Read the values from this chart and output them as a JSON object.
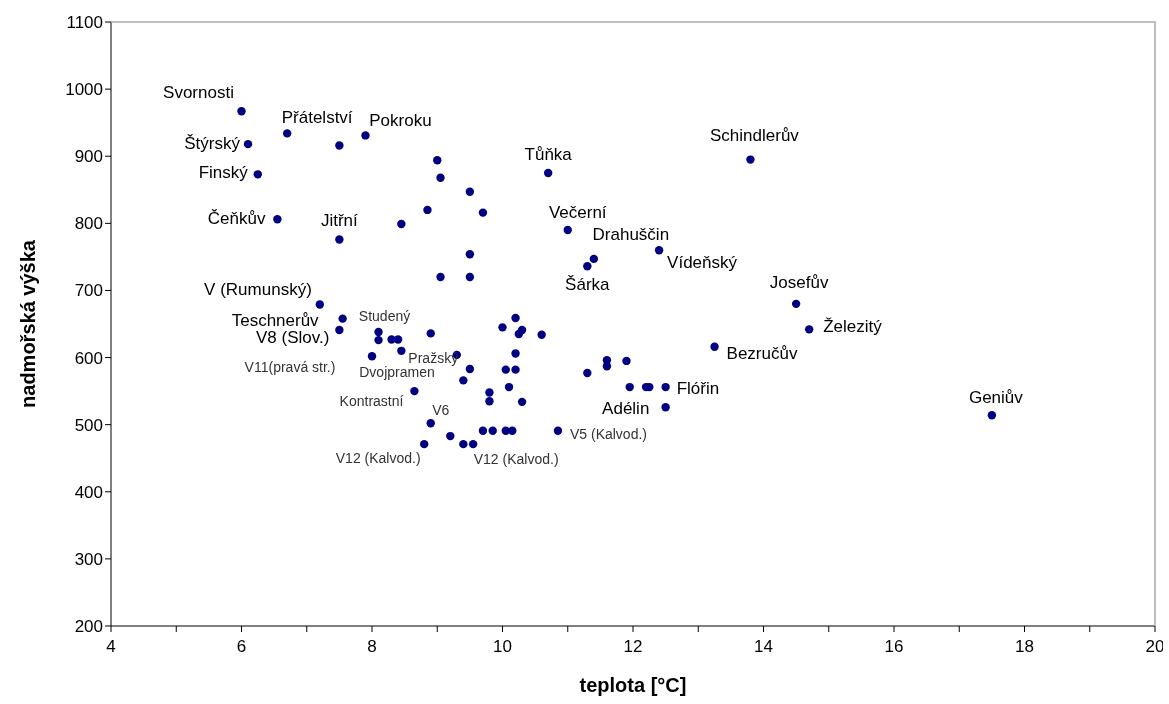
{
  "chart_data": {
    "type": "scatter",
    "xlabel": "teplota [°C]",
    "ylabel": "nadmořská výška",
    "xlim": [
      4,
      20
    ],
    "xticks": [
      4,
      {
        "value": 5,
        "label": null
      },
      6,
      {
        "value": 7,
        "label": null
      },
      8,
      {
        "value": 9,
        "label": null
      },
      10,
      {
        "value": 11,
        "label": null
      },
      12,
      {
        "value": 13,
        "label": null
      },
      14,
      {
        "value": 15,
        "label": null
      },
      16,
      {
        "value": 17,
        "label": null
      },
      18,
      {
        "value": 19,
        "label": null
      },
      20
    ],
    "ylim": [
      200,
      1100
    ],
    "yticks": [
      200,
      300,
      400,
      500,
      600,
      700,
      800,
      900,
      1000,
      1100
    ],
    "grid": false,
    "legend": false,
    "marker": "circle",
    "series": [
      {
        "color": "#000080",
        "x": [
          6.0,
          6.1,
          6.7,
          7.5,
          7.9,
          6.25,
          6.55,
          7.5,
          8.45,
          8.85,
          9.0,
          9.05,
          9.5,
          9.7,
          9.5,
          9.05,
          9.5,
          7.2,
          7.55,
          7.5,
          8.1,
          8.1,
          8.3,
          8.4,
          8.9,
          8.45,
          8.0,
          9.3,
          9.5,
          9.4,
          8.65,
          8.9,
          8.8,
          9.2,
          9.4,
          9.55,
          9.7,
          9.85,
          10.05,
          10.15,
          10.85,
          10.0,
          10.2,
          10.3,
          10.25,
          10.6,
          10.2,
          10.05,
          10.2,
          10.1,
          9.8,
          9.8,
          10.3,
          11.3,
          11.6,
          11.6,
          11.9,
          11.95,
          12.2,
          12.25,
          12.5,
          12.5,
          13.25,
          10.7,
          11.0,
          11.4,
          11.3,
          12.4,
          13.8,
          14.5,
          14.7,
          17.5
        ],
        "values": [
          967,
          918,
          934,
          916,
          931,
          873,
          806,
          776,
          799,
          820,
          894,
          868,
          847,
          816,
          754,
          720,
          720,
          679,
          658,
          641,
          638,
          626,
          627,
          627,
          636,
          610,
          602,
          604,
          583,
          566,
          550,
          502,
          471,
          483,
          471,
          471,
          491,
          491,
          491,
          491,
          491,
          645,
          659,
          641,
          635,
          634,
          606,
          582,
          582,
          556,
          548,
          535,
          534,
          577,
          596,
          587,
          595,
          556,
          556,
          556,
          556,
          526,
          616,
          875,
          790,
          747,
          736,
          760,
          895,
          680,
          642,
          514
        ]
      }
    ],
    "annotations": [
      {
        "text": "Svornosti",
        "x": 6.0,
        "y": 967
      },
      {
        "text": "Štýrský",
        "x": 6.1,
        "y": 918
      },
      {
        "text": "Přátelství",
        "x": 6.7,
        "y": 934
      },
      {
        "text": "Pokroku",
        "x": 7.9,
        "y": 931
      },
      {
        "text": "Finský",
        "x": 6.25,
        "y": 873
      },
      {
        "text": "Čeňkův",
        "x": 6.55,
        "y": 806
      },
      {
        "text": "Jitřní",
        "x": 7.5,
        "y": 776
      },
      {
        "text": "Tůňka",
        "x": 10.7,
        "y": 875
      },
      {
        "text": "Večerní",
        "x": 11.0,
        "y": 790
      },
      {
        "text": "Drahuščin",
        "x": 11.4,
        "y": 747
      },
      {
        "text": "Šárka",
        "x": 11.3,
        "y": 736
      },
      {
        "text": "Vídeňský",
        "x": 12.4,
        "y": 760
      },
      {
        "text": "Schindlerův",
        "x": 13.8,
        "y": 895
      },
      {
        "text": "Josefův",
        "x": 14.5,
        "y": 680
      },
      {
        "text": "Železitý",
        "x": 14.7,
        "y": 642
      },
      {
        "text": "Bezručův",
        "x": 13.25,
        "y": 616
      },
      {
        "text": "Flóřin",
        "x": 12.5,
        "y": 556
      },
      {
        "text": "Adélin",
        "x": 11.95,
        "y": 556
      },
      {
        "text": "Geniův",
        "x": 17.5,
        "y": 514
      },
      {
        "text": "V (Rumunský)",
        "x": 7.2,
        "y": 679
      },
      {
        "text": "Teschnerův",
        "x": 7.55,
        "y": 658
      },
      {
        "text": "V8 (Slov.)",
        "x": 7.5,
        "y": 641
      },
      {
        "text": "Studený",
        "x": 8.1,
        "y": 638
      },
      {
        "text": "Pražský",
        "x": 8.45,
        "y": 610
      },
      {
        "text": "Dvojpramen",
        "x": 8.0,
        "y": 602
      },
      {
        "text": "Kontrastní",
        "x": 8.65,
        "y": 550
      },
      {
        "text": "V6",
        "x": 8.9,
        "y": 502
      },
      {
        "text": "V12 (Kalvod.)",
        "x": 8.8,
        "y": 471
      },
      {
        "text": "V12 (Kalvod.)",
        "x": 9.55,
        "y": 471
      },
      {
        "text": "V5 (Kalvod.)",
        "x": 10.85,
        "y": 491
      },
      "V11(pravá str.)"
    ]
  }
}
